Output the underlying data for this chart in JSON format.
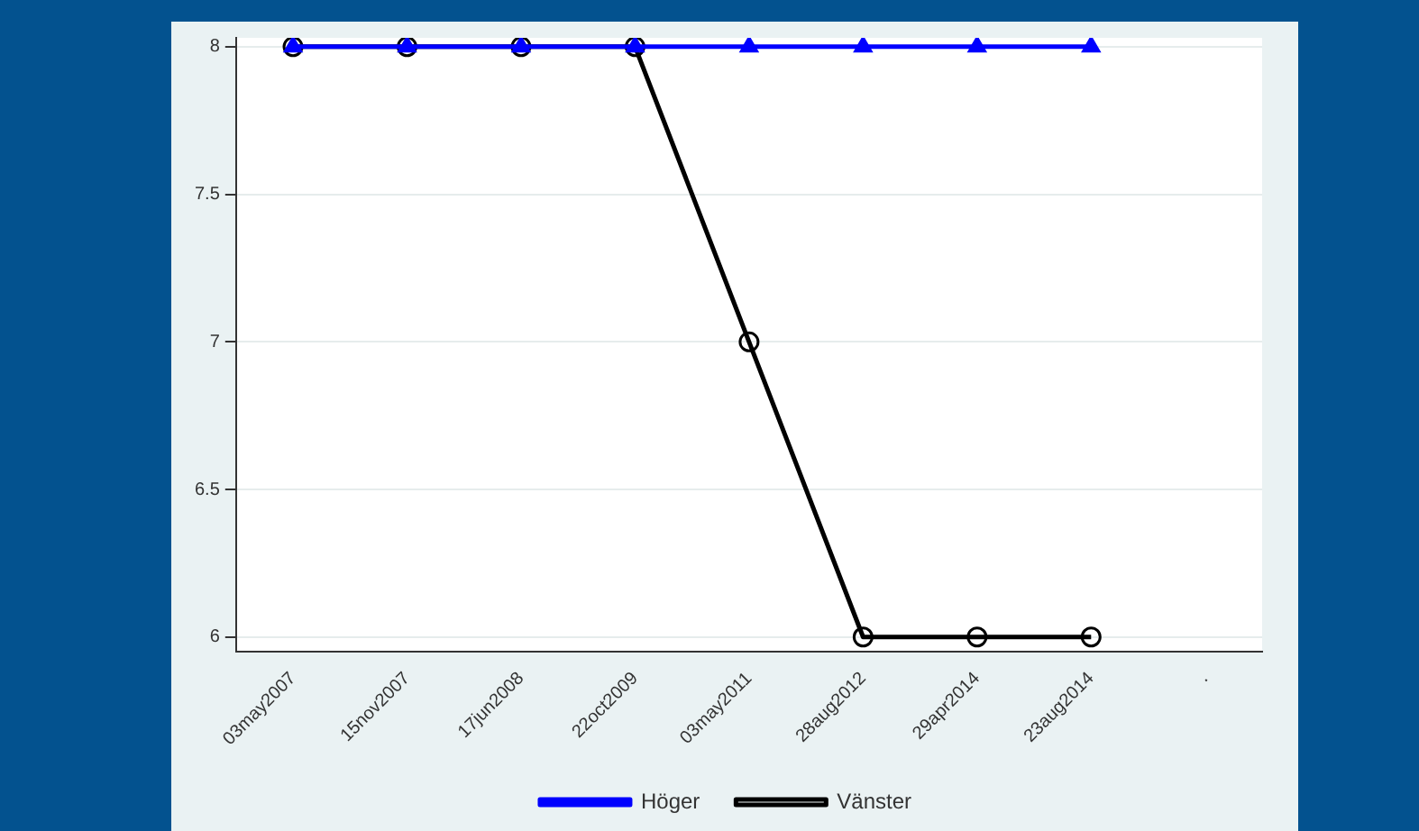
{
  "chart_data": {
    "type": "line",
    "categories": [
      "03may2007",
      "15nov2007",
      "17jun2008",
      "22oct2009",
      "03may2011",
      "28aug2012",
      "29apr2014",
      "23aug2014",
      "."
    ],
    "series": [
      {
        "name": "Höger",
        "color": "#0000ff",
        "marker": "triangle",
        "values": [
          8,
          8,
          8,
          8,
          8,
          8,
          8,
          8,
          null
        ]
      },
      {
        "name": "Vänster",
        "color": "#000000",
        "marker": "circle",
        "values": [
          8,
          8,
          8,
          8,
          7,
          6,
          6,
          6,
          null
        ]
      }
    ],
    "ylim": [
      5.95,
      8.03
    ],
    "yticks": [
      6,
      6.5,
      7,
      7.5,
      8
    ],
    "grid": "y",
    "legend": "bottom",
    "line_style": "solid"
  }
}
